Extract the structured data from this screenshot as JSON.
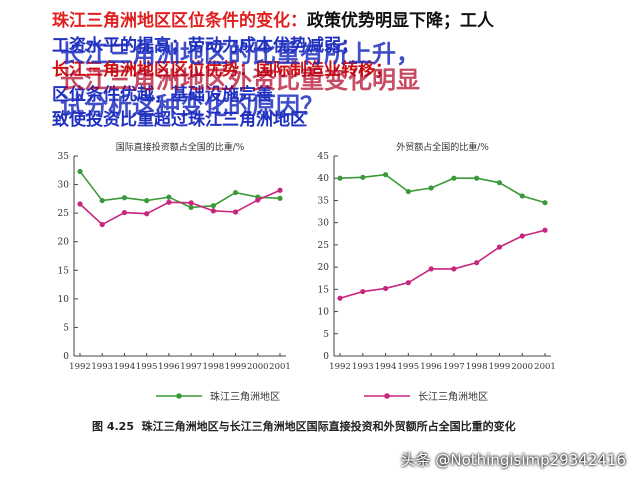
{
  "slide": {
    "line1_red": "珠江三角洲地区区位条件的变化：",
    "line1_rest": "政策优势明显下降；工人",
    "line2": "工资水平的提高；劳动力成本优势减弱；",
    "line3": "长江三角洲地区区位优势：国际制造业转移；",
    "line4": "区位条件优越，基础设施完善",
    "line5": "致使投资比重超过珠江三角洲地区",
    "overlay1": "长江三角洲地区的比重有所上升，",
    "overlay2": "长江三角洲地区外资比重变化明显",
    "overlay3": "试分析这种变化的原因？"
  },
  "chart_data": [
    {
      "type": "line",
      "title": "国际直接投资额占全国的比重/%",
      "x": [
        "1992",
        "1993",
        "1994",
        "1995",
        "1996",
        "1997",
        "1998",
        "1999",
        "2000",
        "2001"
      ],
      "ylim": [
        0,
        35
      ],
      "yticks": [
        "0",
        "5",
        "10",
        "15",
        "20",
        "25",
        "30",
        "35"
      ],
      "grid": false,
      "series": [
        {
          "name": "珠江三角洲地区",
          "color": "#3a9a3a",
          "values": [
            32.3,
            27.2,
            27.7,
            27.2,
            27.8,
            26.0,
            26.3,
            28.6,
            27.8,
            27.6
          ]
        },
        {
          "name": "长江三角洲地区",
          "color": "#c8257f",
          "values": [
            26.6,
            23.0,
            25.1,
            24.9,
            26.9,
            26.8,
            25.4,
            25.2,
            27.3,
            29.0
          ]
        }
      ]
    },
    {
      "type": "line",
      "title": "外贸额占全国的比重/%",
      "x": [
        "1992",
        "1993",
        "1994",
        "1995",
        "1996",
        "1997",
        "1998",
        "1999",
        "2000",
        "2001"
      ],
      "ylim": [
        0,
        45
      ],
      "yticks": [
        "0",
        "5",
        "10",
        "15",
        "20",
        "25",
        "30",
        "35",
        "40",
        "45"
      ],
      "grid": false,
      "series": [
        {
          "name": "珠江三角洲地区",
          "color": "#3a9a3a",
          "values": [
            40.0,
            40.2,
            40.8,
            37.0,
            37.8,
            40.0,
            40.0,
            39.0,
            36.0,
            34.5
          ]
        },
        {
          "name": "长江三角洲地区",
          "color": "#c8257f",
          "values": [
            13.0,
            14.5,
            15.2,
            16.5,
            19.6,
            19.6,
            21.0,
            24.5,
            27.0,
            28.3
          ]
        }
      ]
    }
  ],
  "legend": [
    {
      "label": "珠江三角洲地区",
      "color": "#3a9a3a"
    },
    {
      "label": "长江三角洲地区",
      "color": "#c8257f"
    }
  ],
  "caption": {
    "figno": "图 4.25",
    "text": "珠江三角洲地区与长江三角洲地区国际直接投资和外贸额所占全国比重的变化"
  },
  "watermark": "头条 @Nothingisimp29342416"
}
